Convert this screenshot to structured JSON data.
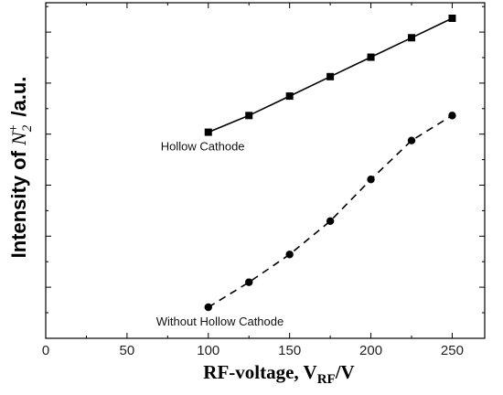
{
  "chart_data": {
    "type": "line",
    "xlabel": {
      "main": "RF-voltage, V",
      "subscript": "RF",
      "unit": "/V"
    },
    "ylabel": {
      "prefix": "Intensity of ",
      "symbol": "N",
      "subscript": "2",
      "superscript": "+",
      "unit": "/a.u."
    },
    "xlim": [
      0,
      270
    ],
    "ylim": [
      0,
      1
    ],
    "x_ticks": [
      0,
      50,
      100,
      150,
      200,
      250
    ],
    "y_tick_labels_shown": false,
    "grid": false,
    "series": [
      {
        "name": "Hollow Cathode",
        "marker": "square",
        "line_style": "solid",
        "x": [
          100,
          125,
          150,
          175,
          200,
          225,
          250
        ],
        "y": [
          0.66,
          0.72,
          0.79,
          0.86,
          0.93,
          1.0,
          1.07
        ]
      },
      {
        "name": "Without Hollow Cathode",
        "marker": "circle",
        "line_style": "dashed",
        "x": [
          100,
          125,
          150,
          175,
          200,
          225,
          250
        ],
        "y": [
          0.03,
          0.12,
          0.22,
          0.34,
          0.49,
          0.63,
          0.72
        ]
      }
    ]
  }
}
